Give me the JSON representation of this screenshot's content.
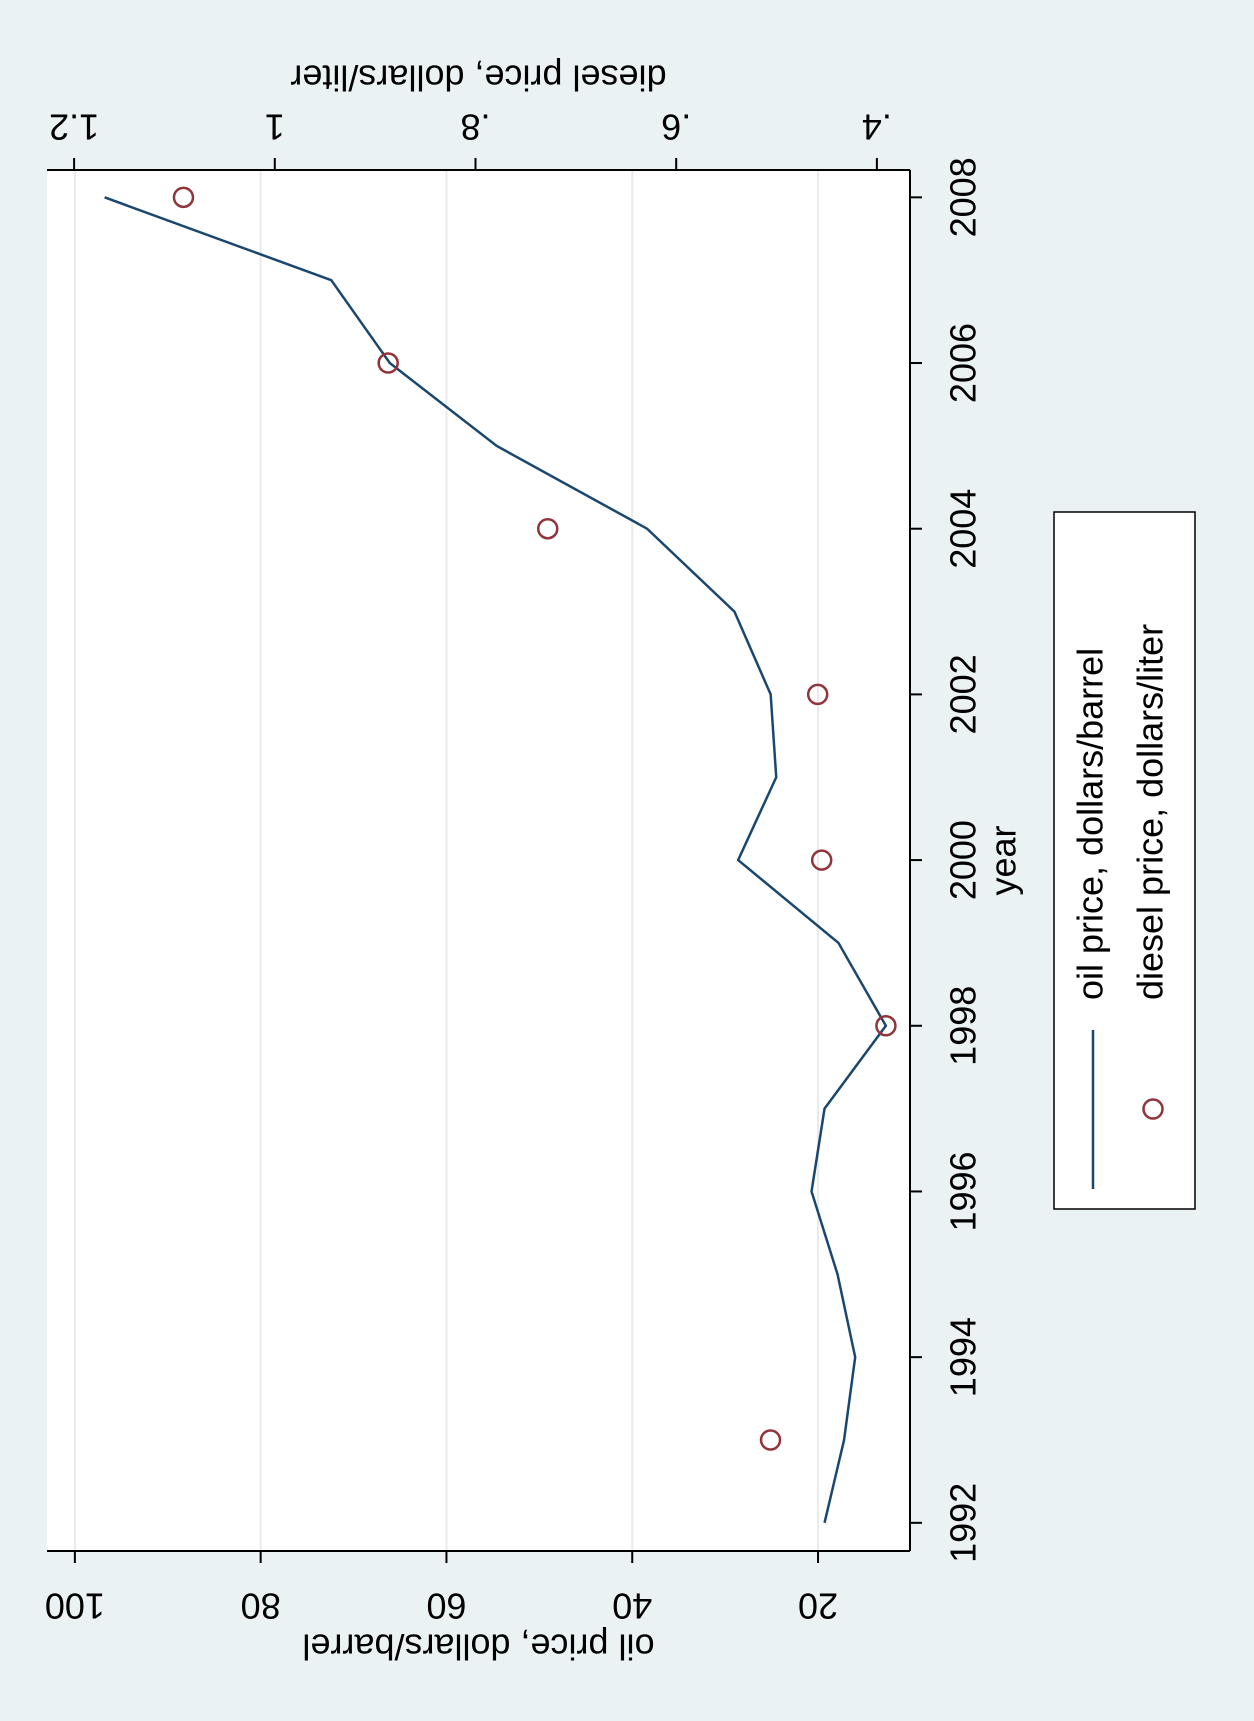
{
  "chart_data": {
    "type": "line",
    "x_label": "year",
    "y_label": "oil price, dollars/barrel",
    "y2_label": "diesel price, dollars/liter",
    "x": [
      1992,
      1993,
      1994,
      1995,
      1996,
      1997,
      1998,
      1999,
      2000,
      2001,
      2002,
      2003,
      2004,
      2005,
      2006,
      2007,
      2008
    ],
    "xlim": [
      1991.66,
      2008.33
    ],
    "xticks": [
      1992,
      1994,
      1996,
      1998,
      2000,
      2002,
      2004,
      2006,
      2008
    ],
    "ylim": [
      10.1,
      103.0
    ],
    "yticks": [
      20,
      40,
      60,
      80,
      100
    ],
    "y2lim": [
      0.367,
      1.227
    ],
    "y2ticks": [
      {
        "value": 0.4,
        "label": ".4"
      },
      {
        "value": 0.6,
        "label": ".6"
      },
      {
        "value": 0.8,
        "label": ".8"
      },
      1,
      {
        "value": 1.2,
        "label": "1.2"
      }
    ],
    "grid": true,
    "legend": "bottom",
    "rotation": -90,
    "series": [
      {
        "name": "oil price, dollars/barrel",
        "type": "line",
        "color": "#1a476f",
        "values": [
          19.3,
          17.2,
          16.0,
          17.9,
          20.7,
          19.3,
          12.7,
          17.8,
          28.6,
          24.5,
          25.1,
          29.0,
          38.4,
          54.6,
          66.1,
          72.4,
          96.8
        ]
      },
      {
        "name": "diesel price, dollars/liter",
        "type": "scatter",
        "axis": "y2",
        "color": "#90353b",
        "values": [
          null,
          0.506,
          null,
          null,
          null,
          null,
          0.391,
          null,
          0.455,
          null,
          0.459,
          null,
          0.728,
          null,
          0.887,
          null,
          1.091
        ]
      }
    ]
  }
}
